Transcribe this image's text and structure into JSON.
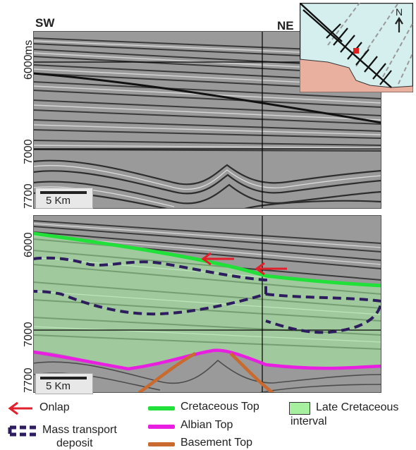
{
  "panels": {
    "top": {
      "left_label": "SW",
      "right_label": "NE",
      "unit_label": "ms",
      "ticks": [
        "6000",
        "7000",
        "7700"
      ],
      "scale_label": "5 Km"
    },
    "bottom": {
      "ticks": [
        "6000",
        "7000",
        "7700"
      ],
      "scale_label": "5 Km"
    }
  },
  "inset_map": {
    "north_label": "N"
  },
  "colors": {
    "cretaceous_top": "#22e03a",
    "albian_top": "#e81ee0",
    "basement_top": "#c96a2e",
    "onlap": "#e0202a",
    "mass_transport": "#2d1c5e",
    "late_cretaceous_fill": "#a6f0a0"
  },
  "legend": {
    "onlap": "Onlap",
    "mass_transport": [
      "Mass transport",
      "deposit"
    ],
    "cretaceous_top": "Cretaceous Top",
    "albian_top": "Albian Top",
    "basement_top": "Basement Top",
    "late_cretaceous": [
      "Late Cretaceous",
      "interval"
    ]
  }
}
